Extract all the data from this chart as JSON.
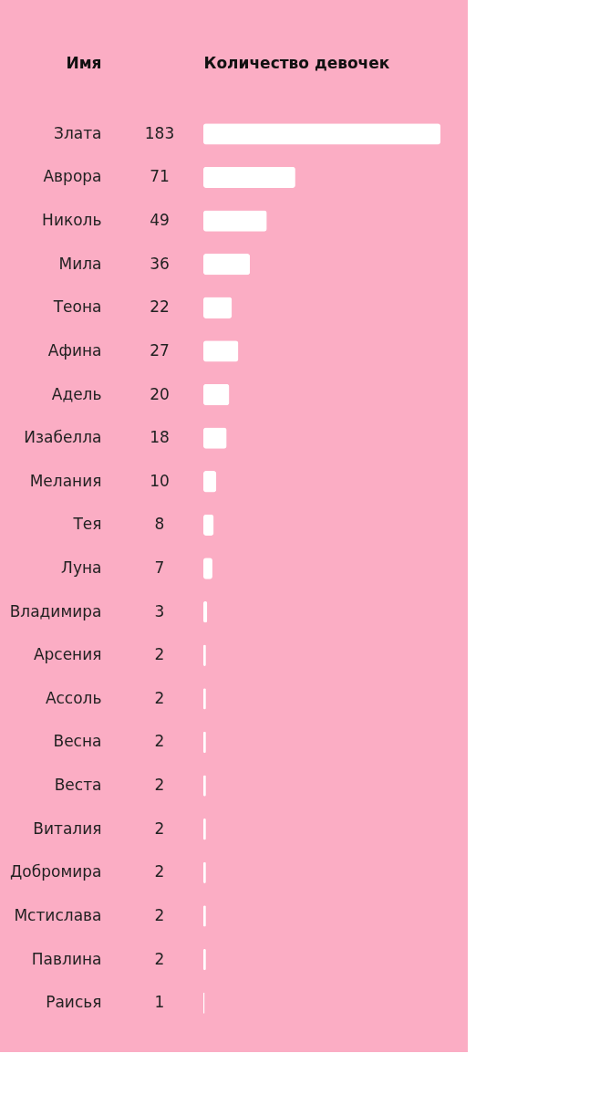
{
  "chart_data": {
    "type": "bar",
    "orientation": "horizontal",
    "xlabel": "Количество девочек",
    "ylabel": "Имя",
    "categories": [
      "Злата",
      "Аврора",
      "Николь",
      "Мила",
      "Теона",
      "Афина",
      "Адель",
      "Изабелла",
      "Мелания",
      "Тея",
      "Луна",
      "Владимира",
      "Арсения",
      "Ассоль",
      "Весна",
      "Веста",
      "Виталия",
      "Добромира",
      "Мстислава",
      "Павлина",
      "Раисья"
    ],
    "values": [
      183,
      71,
      49,
      36,
      22,
      27,
      20,
      18,
      10,
      8,
      7,
      3,
      2,
      2,
      2,
      2,
      2,
      2,
      2,
      2,
      1
    ],
    "color": "#ffffff",
    "data_labels": true,
    "grid": false
  }
}
